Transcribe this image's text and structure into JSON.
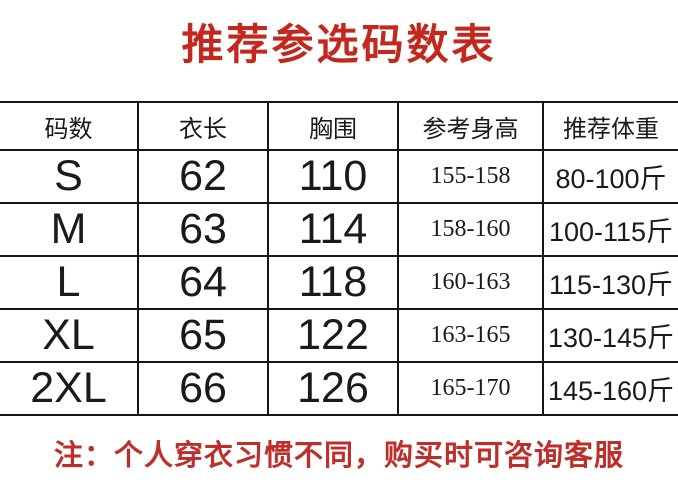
{
  "title": "推荐参选码数表",
  "note": "注：个人穿衣习惯不同，购买时可咨询客服",
  "colors": {
    "title_red": "#c3281f",
    "note_red": "#bd2f2a",
    "table_line": "#161616",
    "text": "#1a1a1a",
    "background": "#ffffff"
  },
  "table": {
    "headers": [
      "码数",
      "衣长",
      "胸围",
      "参考身高",
      "推荐体重"
    ],
    "rows": [
      [
        "S",
        "62",
        "110",
        "155-158",
        "80-100斤"
      ],
      [
        "M",
        "63",
        "114",
        "158-160",
        "100-115斤"
      ],
      [
        "L",
        "64",
        "118",
        "160-163",
        "115-130斤"
      ],
      [
        "XL",
        "65",
        "122",
        "163-165",
        "130-145斤"
      ],
      [
        "2XL",
        "66",
        "126",
        "165-170",
        "145-160斤"
      ]
    ]
  },
  "chart_data": {
    "type": "table",
    "title": "推荐参选码数表",
    "columns": [
      "码数",
      "衣长",
      "胸围",
      "参考身高",
      "推荐体重"
    ],
    "rows": [
      [
        "S",
        62,
        110,
        "155-158",
        "80-100斤"
      ],
      [
        "M",
        63,
        114,
        "158-160",
        "100-115斤"
      ],
      [
        "L",
        64,
        118,
        "160-163",
        "115-130斤"
      ],
      [
        "XL",
        65,
        122,
        "163-165",
        "130-145斤"
      ],
      [
        "2XL",
        66,
        126,
        "165-170",
        "145-160斤"
      ]
    ],
    "footnote": "注：个人穿衣习惯不同，购买时可咨询客服"
  }
}
